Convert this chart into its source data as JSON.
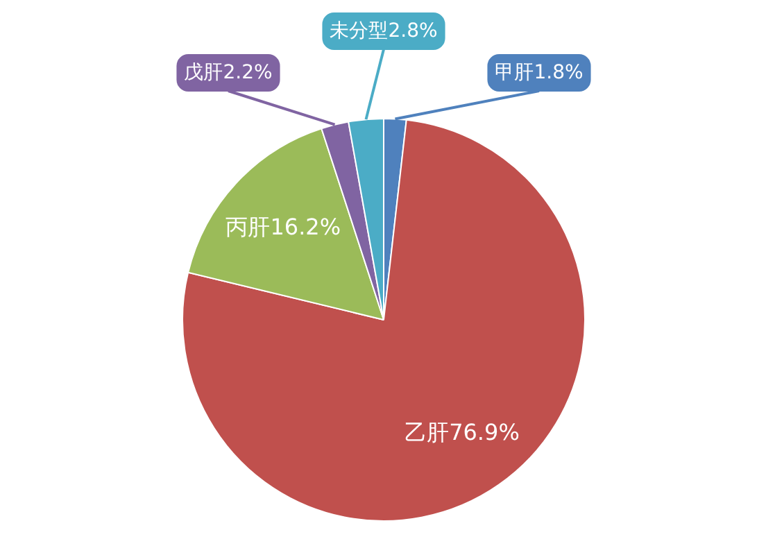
{
  "chart_data": {
    "type": "pie",
    "categories": [
      "甲肝",
      "乙肝",
      "丙肝",
      "戊肝",
      "未分型"
    ],
    "values": [
      1.8,
      76.9,
      16.2,
      2.2,
      2.8
    ],
    "colors": [
      "#4f81bd",
      "#c0504d",
      "#9bbb59",
      "#8064a2",
      "#4bacc6"
    ],
    "value_labels": [
      "1.8%",
      "76.9%",
      "16.2%",
      "2.2%",
      "2.8%"
    ]
  }
}
